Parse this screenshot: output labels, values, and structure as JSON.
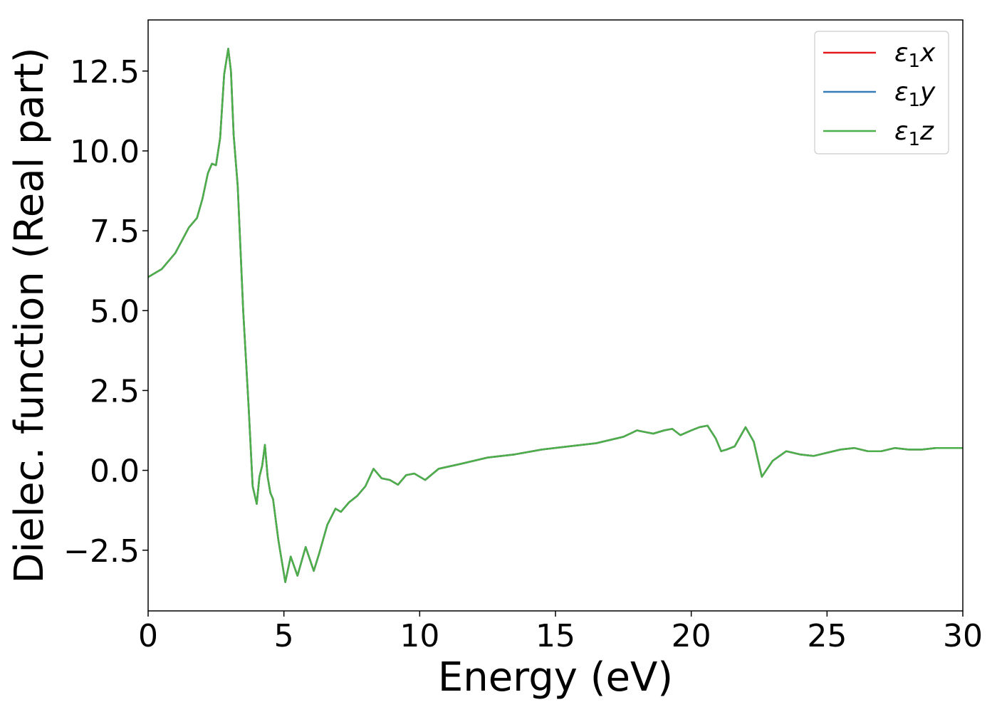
{
  "chart_data": {
    "type": "line",
    "title": "",
    "xlabel": "Energy (eV)",
    "ylabel": "Dielec. function (Real part)",
    "xlim": [
      0,
      30
    ],
    "ylim": [
      -4.4,
      14.1
    ],
    "grid": false,
    "legend_position": "top-right",
    "xticks": [
      0,
      5,
      10,
      15,
      20,
      25,
      30
    ],
    "xtick_labels": [
      "0",
      "5",
      "10",
      "15",
      "20",
      "25",
      "30"
    ],
    "yticks": [
      -2.5,
      0.0,
      2.5,
      5.0,
      7.5,
      10.0,
      12.5
    ],
    "ytick_labels": [
      "−2.5",
      "0.0",
      "2.5",
      "5.0",
      "7.5",
      "10.0",
      "12.5"
    ],
    "x": [
      0,
      0.5,
      1.0,
      1.5,
      1.8,
      2.0,
      2.2,
      2.35,
      2.5,
      2.65,
      2.8,
      2.95,
      3.05,
      3.15,
      3.3,
      3.5,
      3.7,
      3.85,
      4.0,
      4.1,
      4.2,
      4.3,
      4.4,
      4.5,
      4.6,
      4.8,
      5.05,
      5.25,
      5.5,
      5.8,
      6.1,
      6.3,
      6.6,
      6.9,
      7.1,
      7.4,
      7.7,
      8.0,
      8.3,
      8.6,
      8.9,
      9.2,
      9.5,
      9.8,
      10.2,
      10.7,
      11.5,
      12.5,
      13.5,
      14.5,
      15.5,
      16.5,
      17.5,
      18.0,
      18.3,
      18.6,
      19.0,
      19.3,
      19.6,
      20.0,
      20.3,
      20.6,
      20.9,
      21.1,
      21.3,
      21.6,
      22.0,
      22.3,
      22.6,
      23.0,
      23.5,
      24.0,
      24.5,
      25.0,
      25.5,
      26.0,
      26.5,
      27.0,
      27.5,
      28.0,
      28.5,
      29.0,
      29.5,
      30.0
    ],
    "series": [
      {
        "name": "ε₁x",
        "color": "#e41a1c",
        "values": [
          6.05,
          6.3,
          6.8,
          7.6,
          7.9,
          8.5,
          9.3,
          9.6,
          9.55,
          10.4,
          12.4,
          13.2,
          12.5,
          10.5,
          8.9,
          5.0,
          2.0,
          -0.5,
          -1.05,
          -0.2,
          0.15,
          0.8,
          -0.2,
          -0.7,
          -0.9,
          -2.2,
          -3.5,
          -2.7,
          -3.3,
          -2.4,
          -3.15,
          -2.6,
          -1.7,
          -1.2,
          -1.3,
          -1.0,
          -0.8,
          -0.5,
          0.05,
          -0.25,
          -0.3,
          -0.45,
          -0.15,
          -0.1,
          -0.3,
          0.05,
          0.2,
          0.4,
          0.5,
          0.65,
          0.75,
          0.85,
          1.05,
          1.25,
          1.2,
          1.15,
          1.25,
          1.3,
          1.1,
          1.25,
          1.35,
          1.4,
          1.0,
          0.6,
          0.65,
          0.75,
          1.35,
          0.9,
          -0.2,
          0.3,
          0.6,
          0.5,
          0.45,
          0.55,
          0.65,
          0.7,
          0.6,
          0.6,
          0.7,
          0.65,
          0.65,
          0.7,
          0.7,
          0.7
        ]
      },
      {
        "name": "ε₁y",
        "color": "#377eb8",
        "values": [
          6.05,
          6.3,
          6.8,
          7.6,
          7.9,
          8.5,
          9.3,
          9.6,
          9.55,
          10.4,
          12.4,
          13.2,
          12.5,
          10.5,
          8.9,
          5.0,
          2.0,
          -0.5,
          -1.05,
          -0.2,
          0.15,
          0.8,
          -0.2,
          -0.7,
          -0.9,
          -2.2,
          -3.5,
          -2.7,
          -3.3,
          -2.4,
          -3.15,
          -2.6,
          -1.7,
          -1.2,
          -1.3,
          -1.0,
          -0.8,
          -0.5,
          0.05,
          -0.25,
          -0.3,
          -0.45,
          -0.15,
          -0.1,
          -0.3,
          0.05,
          0.2,
          0.4,
          0.5,
          0.65,
          0.75,
          0.85,
          1.05,
          1.25,
          1.2,
          1.15,
          1.25,
          1.3,
          1.1,
          1.25,
          1.35,
          1.4,
          1.0,
          0.6,
          0.65,
          0.75,
          1.35,
          0.9,
          -0.2,
          0.3,
          0.6,
          0.5,
          0.45,
          0.55,
          0.65,
          0.7,
          0.6,
          0.6,
          0.7,
          0.65,
          0.65,
          0.7,
          0.7,
          0.7
        ]
      },
      {
        "name": "ε₁z",
        "color": "#4daf4a",
        "values": [
          6.05,
          6.3,
          6.8,
          7.6,
          7.9,
          8.5,
          9.3,
          9.6,
          9.55,
          10.4,
          12.4,
          13.2,
          12.5,
          10.5,
          8.9,
          5.0,
          2.0,
          -0.5,
          -1.05,
          -0.2,
          0.15,
          0.8,
          -0.2,
          -0.7,
          -0.9,
          -2.2,
          -3.5,
          -2.7,
          -3.3,
          -2.4,
          -3.15,
          -2.6,
          -1.7,
          -1.2,
          -1.3,
          -1.0,
          -0.8,
          -0.5,
          0.05,
          -0.25,
          -0.3,
          -0.45,
          -0.15,
          -0.1,
          -0.3,
          0.05,
          0.2,
          0.4,
          0.5,
          0.65,
          0.75,
          0.85,
          1.05,
          1.25,
          1.2,
          1.15,
          1.25,
          1.3,
          1.1,
          1.25,
          1.35,
          1.4,
          1.0,
          0.6,
          0.65,
          0.75,
          1.35,
          0.9,
          -0.2,
          0.3,
          0.6,
          0.5,
          0.45,
          0.55,
          0.65,
          0.7,
          0.6,
          0.6,
          0.7,
          0.65,
          0.65,
          0.7,
          0.7,
          0.7
        ]
      }
    ],
    "legend": [
      {
        "symbol": "ε",
        "subscript": "1",
        "axis": "x",
        "color": "#e41a1c"
      },
      {
        "symbol": "ε",
        "subscript": "1",
        "axis": "y",
        "color": "#377eb8"
      },
      {
        "symbol": "ε",
        "subscript": "1",
        "axis": "z",
        "color": "#4daf4a"
      }
    ]
  }
}
